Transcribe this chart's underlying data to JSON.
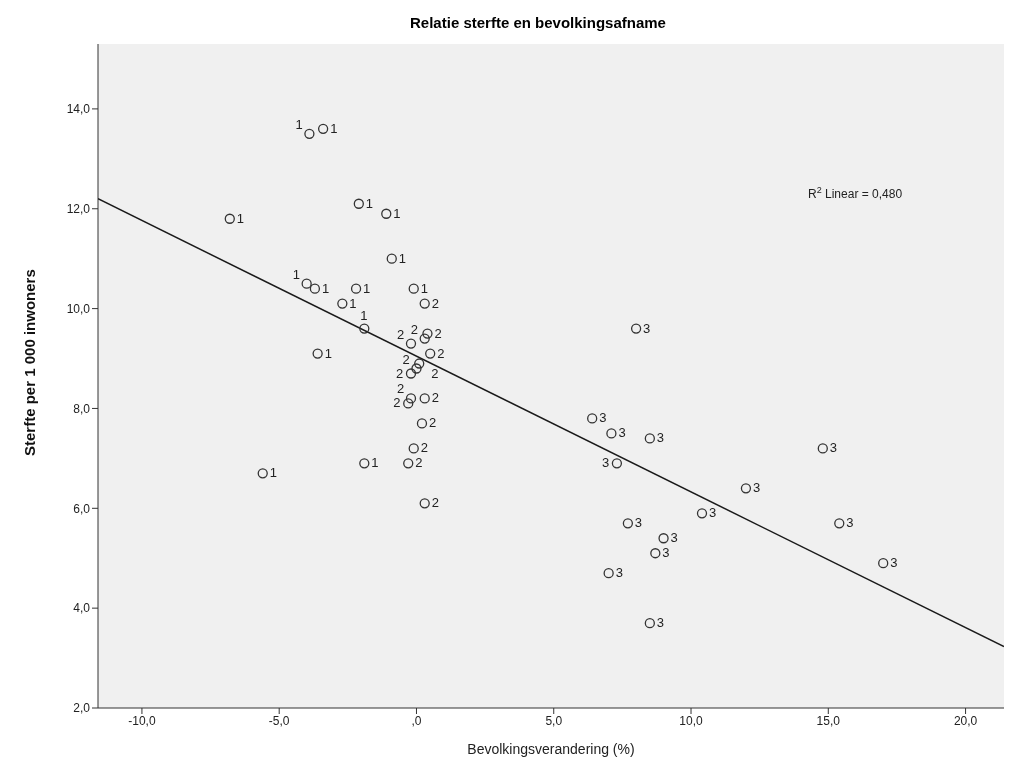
{
  "chart_data": {
    "type": "scatter",
    "title": "Relatie sterfte en bevolkingsafname",
    "xlabel": "Bevolkingsverandering (%)",
    "ylabel": "Sterfte per 1 000 inwoners",
    "annotations": [
      "R$^{2}$ Linear = 0,480"
    ],
    "xlim": [
      -11.6,
      21.4
    ],
    "ylim": [
      2,
      15.3
    ],
    "xticks": [
      {
        "value": -10,
        "label": "-10,0"
      },
      {
        "value": -5,
        "label": "-5,0"
      },
      {
        "value": 0,
        "label": ",0"
      },
      {
        "value": 5,
        "label": "5,0"
      },
      {
        "value": 10,
        "label": "10,0"
      },
      {
        "value": 15,
        "label": "15,0"
      },
      {
        "value": 20,
        "label": "20,0"
      }
    ],
    "yticks": [
      {
        "value": 2,
        "label": "2,0"
      },
      {
        "value": 4,
        "label": "4,0"
      },
      {
        "value": 6,
        "label": "6,0"
      },
      {
        "value": 8,
        "label": "8,0"
      },
      {
        "value": 10,
        "label": "10,0"
      },
      {
        "value": 12,
        "label": "12,0"
      },
      {
        "value": 14,
        "label": "14,0"
      }
    ],
    "grid": false,
    "legend": false,
    "marker": "circle",
    "series": [
      {
        "name": "1",
        "color": "#333333",
        "x": [
          -3.9,
          -3.4,
          -6.8,
          -2.1,
          -1.1,
          -0.9,
          -4.0,
          -3.7,
          -2.2,
          -2.7,
          -1.9,
          -3.6,
          -5.6,
          -1.9,
          -0.1
        ],
        "values": [
          13.5,
          13.6,
          11.8,
          12.1,
          11.9,
          11.0,
          10.5,
          10.4,
          10.4,
          10.1,
          9.6,
          9.1,
          6.7,
          6.9,
          10.4
        ]
      },
      {
        "name": "2",
        "color": "#333333",
        "x": [
          0.3,
          0.4,
          0.3,
          -0.2,
          0.5,
          0.1,
          0.0,
          -0.2,
          -0.2,
          -0.3,
          0.3,
          0.2,
          -0.1,
          -0.3,
          0.3
        ],
        "values": [
          10.1,
          9.5,
          9.4,
          9.3,
          9.1,
          8.9,
          8.8,
          8.7,
          8.2,
          8.1,
          8.2,
          7.7,
          7.2,
          6.9,
          6.1
        ]
      },
      {
        "name": "3",
        "color": "#333333",
        "x": [
          8.0,
          6.4,
          7.1,
          8.5,
          7.3,
          12.0,
          10.4,
          7.7,
          9.0,
          8.7,
          7.0,
          8.5,
          14.8,
          15.4,
          17.0
        ],
        "values": [
          9.6,
          7.8,
          7.5,
          7.4,
          6.9,
          6.4,
          5.9,
          5.7,
          5.4,
          5.1,
          4.7,
          3.7,
          7.2,
          5.7,
          4.9
        ]
      },
      {
        "type": "line",
        "marker": "none",
        "color": "#1a1a1a",
        "x": [
          -11.6,
          21.4
        ],
        "values": [
          12.2,
          3.23
        ]
      }
    ]
  }
}
